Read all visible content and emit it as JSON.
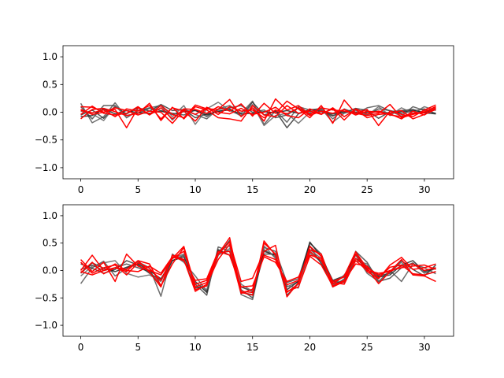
{
  "chart_data": [
    {
      "type": "line",
      "xlim": [
        -1.55,
        32.55
      ],
      "ylim": [
        -1.2,
        1.2
      ],
      "xticks": [
        0,
        5,
        10,
        15,
        20,
        25,
        30
      ],
      "yticks": [
        -1.0,
        -0.5,
        0.0,
        0.5,
        1.0
      ],
      "xtick_labels": [
        "0",
        "5",
        "10",
        "15",
        "20",
        "25",
        "30"
      ],
      "ytick_labels": [
        "−1.0",
        "−0.5",
        "0.0",
        "0.5",
        "1.0"
      ],
      "grid": false,
      "x": [
        0,
        1,
        2,
        3,
        4,
        5,
        6,
        7,
        8,
        9,
        10,
        11,
        12,
        13,
        14,
        15,
        16,
        17,
        18,
        19,
        20,
        21,
        22,
        23,
        24,
        25,
        26,
        27,
        28,
        29,
        30,
        31
      ],
      "series": [
        {
          "color": "#555555",
          "values": [
            0.16,
            -0.19,
            -0.08,
            0.17,
            -0.1,
            0.03,
            0.08,
            0.12,
            -0.14,
            0.06,
            -0.04,
            -0.12,
            0.06,
            0.12,
            -0.02,
            0.2,
            -0.22,
            0.03,
            -0.18,
            0.1,
            0.04,
            0.07,
            -0.12,
            0.06,
            -0.03,
            0.08,
            0.12,
            0.02,
            -0.07,
            0.1,
            0.03,
            -0.02
          ]
        },
        {
          "color": "#333333",
          "values": [
            -0.05,
            0.04,
            -0.11,
            0.1,
            -0.03,
            0.08,
            0.02,
            0.14,
            0.03,
            0.05,
            -0.1,
            -0.03,
            0.01,
            0.06,
            -0.07,
            0.18,
            -0.05,
            0.02,
            -0.28,
            -0.03,
            0.05,
            0.04,
            -0.06,
            -0.01,
            0.07,
            0.03,
            -0.11,
            0.01,
            0.03,
            0.05,
            -0.01,
            0.06
          ]
        },
        {
          "color": "#444444",
          "values": [
            0.1,
            -0.12,
            0.12,
            0.12,
            -0.06,
            -0.02,
            0.07,
            0.03,
            -0.02,
            -0.05,
            0.04,
            -0.08,
            0.05,
            0.08,
            0.12,
            0.0,
            0.04,
            -0.1,
            -0.05,
            0.08,
            -0.02,
            0.01,
            -0.07,
            0.05,
            0.0,
            -0.04,
            0.06,
            0.03,
            -0.02,
            0.02,
            0.06,
            -0.03
          ]
        },
        {
          "color": "#222222",
          "values": [
            -0.08,
            -0.06,
            0.06,
            -0.03,
            0.03,
            -0.01,
            -0.02,
            0.02,
            -0.04,
            0.01,
            0.03,
            -0.05,
            0.02,
            0.04,
            -0.03,
            -0.02,
            0.01,
            -0.01,
            0.03,
            -0.02,
            0.04,
            0.02,
            -0.03,
            0.01,
            -0.01,
            0.0,
            0.02,
            -0.02,
            0.01,
            0.03,
            -0.01,
            -0.03
          ]
        },
        {
          "color": "#666666",
          "values": [
            0.02,
            -0.03,
            -0.15,
            0.12,
            -0.1,
            0.04,
            -0.04,
            0.14,
            -0.08,
            0.12,
            -0.22,
            0.06,
            0.18,
            0.03,
            -0.06,
            0.14,
            -0.24,
            -0.06,
            -0.02,
            -0.2,
            0.0,
            0.06,
            -0.18,
            -0.02,
            0.03,
            -0.06,
            0.1,
            -0.06,
            0.08,
            -0.02,
            0.1,
            0.03
          ]
        },
        {
          "color": "#ff0000",
          "values": [
            0.1,
            0.09,
            0.0,
            0.05,
            -0.28,
            0.08,
            -0.04,
            0.12,
            -0.04,
            -0.1,
            0.13,
            0.06,
            0.05,
            0.23,
            -0.08,
            0.08,
            -0.16,
            0.24,
            0.04,
            0.12,
            -0.04,
            0.08,
            0.04,
            0.02,
            -0.02,
            -0.06,
            -0.02,
            0.14,
            -0.1,
            -0.04,
            0.01,
            0.1
          ]
        },
        {
          "color": "#ff0000",
          "values": [
            -0.04,
            0.11,
            -0.02,
            -0.05,
            -0.02,
            0.1,
            -0.05,
            0.08,
            -0.12,
            0.06,
            0.05,
            -0.02,
            0.1,
            0.02,
            0.15,
            -0.07,
            0.16,
            -0.02,
            0.2,
            0.06,
            -0.1,
            0.12,
            -0.2,
            0.22,
            -0.02,
            0.05,
            -0.24,
            0.02,
            -0.04,
            -0.08,
            0.04,
            0.13
          ]
        },
        {
          "color": "#ff0000",
          "values": [
            0.03,
            -0.01,
            0.04,
            -0.08,
            0.06,
            0.02,
            0.12,
            -0.12,
            0.08,
            0.02,
            -0.16,
            0.09,
            0.0,
            -0.03,
            0.07,
            -0.04,
            0.0,
            0.09,
            -0.06,
            -0.1,
            0.06,
            -0.03,
            0.06,
            -0.14,
            0.06,
            -0.03,
            0.02,
            -0.05,
            -0.08,
            -0.02,
            -0.01,
            0.1
          ]
        },
        {
          "color": "#ff0000",
          "values": [
            -0.12,
            0.05,
            0.07,
            0.01,
            -0.06,
            -0.02,
            0.16,
            -0.15,
            0.09,
            -0.12,
            0.1,
            0.04,
            -0.1,
            -0.12,
            -0.16,
            0.12,
            -0.05,
            -0.08,
            0.12,
            -0.02,
            0.02,
            -0.04,
            0.08,
            -0.08,
            0.05,
            -0.1,
            -0.04,
            -0.02,
            0.03,
            -0.12,
            -0.04,
            0.05
          ]
        },
        {
          "color": "#ff0000",
          "values": [
            0.05,
            -0.04,
            0.0,
            0.08,
            0.03,
            -0.05,
            0.02,
            0.0,
            -0.2,
            0.04,
            -0.04,
            0.08,
            -0.04,
            0.1,
            0.02,
            0.04,
            -0.1,
            0.04,
            -0.03,
            0.08,
            -0.06,
            0.02,
            -0.02,
            0.05,
            -0.05,
            0.02,
            0.0,
            -0.03,
            -0.12,
            0.02,
            -0.05,
            0.08
          ]
        }
      ]
    },
    {
      "type": "line",
      "xlim": [
        -1.55,
        32.55
      ],
      "ylim": [
        -1.2,
        1.2
      ],
      "xticks": [
        0,
        5,
        10,
        15,
        20,
        25,
        30
      ],
      "yticks": [
        -1.0,
        -0.5,
        0.0,
        0.5,
        1.0
      ],
      "xtick_labels": [
        "0",
        "5",
        "10",
        "15",
        "20",
        "25",
        "30"
      ],
      "ytick_labels": [
        "−1.0",
        "−0.5",
        "0.0",
        "0.5",
        "1.0"
      ],
      "grid": false,
      "x": [
        0,
        1,
        2,
        3,
        4,
        5,
        6,
        7,
        8,
        9,
        10,
        11,
        12,
        13,
        14,
        15,
        16,
        17,
        18,
        19,
        20,
        21,
        22,
        23,
        24,
        25,
        26,
        27,
        28,
        29,
        30,
        31
      ],
      "series": [
        {
          "color": "#555555",
          "values": [
            -0.24,
            0.05,
            0.17,
            -0.1,
            0.04,
            0.16,
            0.05,
            -0.47,
            0.3,
            0.15,
            -0.1,
            -0.38,
            0.36,
            0.45,
            -0.44,
            -0.53,
            0.38,
            0.25,
            -0.3,
            -0.2,
            0.32,
            0.16,
            -0.3,
            -0.15,
            0.28,
            -0.05,
            -0.2,
            0.0,
            -0.2,
            0.12,
            0.05,
            -0.06
          ]
        },
        {
          "color": "#444444",
          "values": [
            0.02,
            0.1,
            0.0,
            0.05,
            0.12,
            0.05,
            -0.02,
            -0.28,
            0.18,
            0.28,
            -0.25,
            -0.45,
            0.43,
            0.35,
            -0.35,
            -0.5,
            0.42,
            0.35,
            -0.22,
            -0.15,
            0.5,
            0.3,
            -0.25,
            -0.18,
            0.35,
            0.15,
            -0.2,
            -0.14,
            0.05,
            0.14,
            -0.05,
            0.04
          ]
        },
        {
          "color": "#333333",
          "values": [
            0.12,
            0.04,
            -0.05,
            0.02,
            0.18,
            0.1,
            -0.05,
            -0.18,
            0.25,
            0.2,
            -0.32,
            -0.28,
            0.28,
            0.55,
            -0.4,
            -0.44,
            0.3,
            0.3,
            -0.45,
            -0.24,
            0.45,
            0.12,
            -0.2,
            -0.22,
            0.22,
            0.08,
            -0.1,
            -0.05,
            0.18,
            0.02,
            -0.1,
            0.1
          ]
        },
        {
          "color": "#222222",
          "values": [
            -0.05,
            0.14,
            0.04,
            -0.02,
            0.06,
            0.12,
            0.0,
            -0.15,
            0.18,
            0.25,
            -0.2,
            -0.4,
            0.38,
            0.28,
            -0.3,
            -0.38,
            0.35,
            0.28,
            -0.35,
            -0.2,
            0.52,
            0.25,
            -0.18,
            -0.1,
            0.3,
            0.02,
            -0.12,
            -0.08,
            0.1,
            0.18,
            -0.02,
            0.05
          ]
        },
        {
          "color": "#666666",
          "values": [
            -0.1,
            0.08,
            0.14,
            0.18,
            -0.05,
            -0.12,
            -0.08,
            -0.2,
            0.22,
            0.3,
            -0.22,
            -0.35,
            0.28,
            0.4,
            -0.25,
            -0.38,
            0.45,
            0.22,
            -0.28,
            -0.32,
            0.38,
            0.22,
            -0.28,
            -0.08,
            0.18,
            0.12,
            -0.22,
            -0.02,
            0.15,
            -0.08,
            -0.08,
            -0.02
          ]
        },
        {
          "color": "#ff0000",
          "values": [
            0.2,
            -0.02,
            0.15,
            -0.2,
            0.3,
            0.08,
            0.0,
            -0.08,
            0.22,
            0.44,
            -0.3,
            -0.22,
            0.3,
            0.6,
            -0.4,
            -0.45,
            0.54,
            0.28,
            -0.4,
            -0.24,
            0.44,
            0.26,
            -0.24,
            -0.1,
            0.34,
            0.04,
            -0.24,
            -0.02,
            0.2,
            -0.08,
            -0.1,
            -0.2
          ]
        },
        {
          "color": "#ff0000",
          "values": [
            0.0,
            0.28,
            0.0,
            0.05,
            -0.02,
            0.18,
            0.12,
            -0.28,
            0.12,
            0.42,
            -0.35,
            -0.28,
            0.3,
            0.52,
            -0.2,
            -0.14,
            0.35,
            0.46,
            -0.48,
            -0.22,
            0.38,
            0.3,
            -0.3,
            -0.2,
            0.3,
            -0.02,
            -0.15,
            0.1,
            0.24,
            0.02,
            0.05,
            0.12
          ]
        },
        {
          "color": "#ff0000",
          "values": [
            -0.04,
            0.15,
            -0.06,
            0.05,
            0.02,
            0.18,
            -0.03,
            -0.3,
            0.28,
            0.2,
            -0.38,
            -0.25,
            0.2,
            0.48,
            -0.38,
            -0.4,
            0.5,
            0.3,
            -0.38,
            -0.3,
            0.26,
            0.1,
            -0.28,
            -0.18,
            0.12,
            0.08,
            -0.14,
            0.06,
            0.1,
            -0.06,
            -0.08,
            -0.02
          ]
        },
        {
          "color": "#ff0000",
          "values": [
            0.15,
            -0.05,
            0.05,
            0.1,
            -0.08,
            0.14,
            0.04,
            -0.18,
            0.22,
            0.35,
            -0.25,
            -0.18,
            0.32,
            0.35,
            -0.42,
            -0.34,
            0.28,
            0.2,
            -0.26,
            -0.18,
            0.35,
            0.18,
            -0.22,
            -0.25,
            0.18,
            0.0,
            -0.05,
            -0.02,
            0.08,
            0.12,
            0.0,
            0.05
          ]
        },
        {
          "color": "#ff0000",
          "values": [
            -0.02,
            -0.08,
            0.0,
            0.12,
            0.0,
            -0.02,
            0.08,
            -0.05,
            0.25,
            0.18,
            -0.18,
            -0.15,
            0.35,
            0.28,
            -0.3,
            -0.28,
            0.25,
            0.15,
            -0.2,
            -0.12,
            0.28,
            0.22,
            -0.2,
            -0.12,
            0.22,
            0.05,
            -0.08,
            0.0,
            0.05,
            0.08,
            0.1,
            0.02
          ]
        }
      ]
    }
  ]
}
